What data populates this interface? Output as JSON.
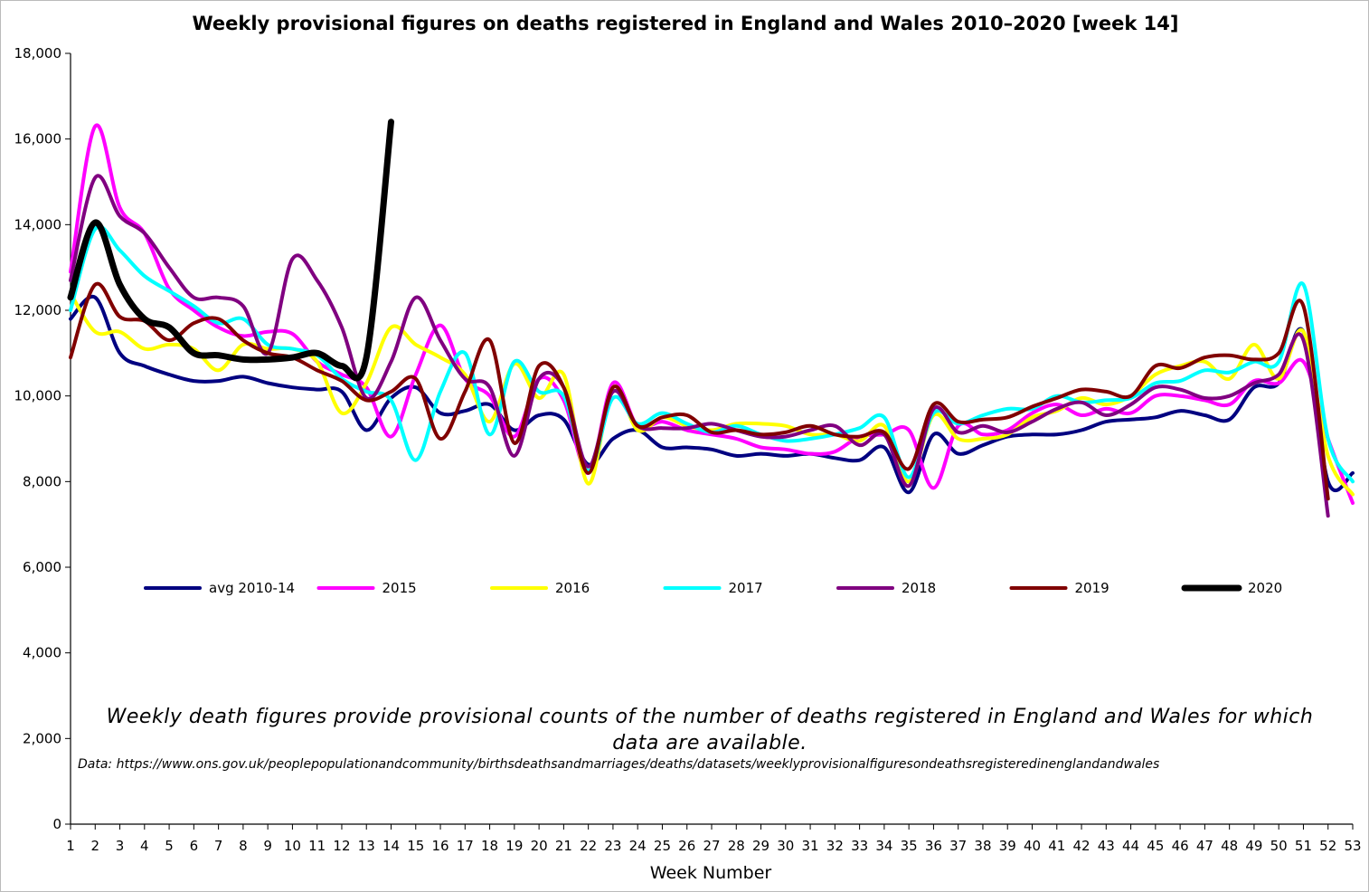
{
  "chart_data": {
    "type": "line",
    "title": "Weekly provisional figures on deaths registered in England and Wales 2010–2020 [week 14]",
    "xlabel": "Week Number",
    "ylabel": "",
    "xlim": [
      1,
      53
    ],
    "ylim": [
      0,
      18000
    ],
    "yticks": [
      0,
      2000,
      4000,
      6000,
      8000,
      10000,
      12000,
      14000,
      16000,
      18000
    ],
    "ytick_labels": [
      "0",
      "2,000",
      "4,000",
      "6,000",
      "8,000",
      "10,000",
      "12,000",
      "14,000",
      "16,000",
      "18,000"
    ],
    "xticks": [
      1,
      2,
      3,
      4,
      5,
      6,
      7,
      8,
      9,
      10,
      11,
      12,
      13,
      14,
      15,
      16,
      17,
      18,
      19,
      20,
      21,
      22,
      23,
      24,
      25,
      26,
      27,
      28,
      29,
      30,
      31,
      32,
      33,
      34,
      35,
      36,
      37,
      38,
      39,
      40,
      41,
      42,
      43,
      44,
      45,
      46,
      47,
      48,
      49,
      50,
      51,
      52,
      53
    ],
    "grid": false,
    "legend_placement": "center",
    "annotation": "Weekly death figures provide provisional counts of the number of deaths registered in England and Wales for which data are available.",
    "source_note": "Data: https://www.ons.gov.uk/peoplepopulationandcommunity/birthsdeathsandmarriages/deaths/datasets/weeklyprovisionalfiguresondeathsregisteredinenglandandwales",
    "series": [
      {
        "name": "avg 2010-14",
        "color": "#000080",
        "width": 4,
        "x": [
          1,
          2,
          3,
          4,
          5,
          6,
          7,
          8,
          9,
          10,
          11,
          12,
          13,
          14,
          15,
          16,
          17,
          18,
          19,
          20,
          21,
          22,
          23,
          24,
          25,
          26,
          27,
          28,
          29,
          30,
          31,
          32,
          33,
          34,
          35,
          36,
          37,
          38,
          39,
          40,
          41,
          42,
          43,
          44,
          45,
          46,
          47,
          48,
          49,
          50,
          51,
          52,
          53
        ],
        "values": [
          11800,
          12300,
          11000,
          10700,
          10500,
          10350,
          10350,
          10450,
          10300,
          10200,
          10150,
          10100,
          9200,
          9950,
          10200,
          9600,
          9650,
          9800,
          9200,
          9550,
          9450,
          8400,
          9000,
          9200,
          8800,
          8800,
          8750,
          8600,
          8650,
          8600,
          8650,
          8550,
          8500,
          8800,
          7750,
          9100,
          8650,
          8850,
          9050,
          9100,
          9100,
          9200,
          9400,
          9450,
          9500,
          9650,
          9550,
          9450,
          10200,
          10300,
          11500,
          8000,
          8200
        ]
      },
      {
        "name": "2015",
        "color": "#ff00ff",
        "width": 4,
        "x": [
          1,
          2,
          3,
          4,
          5,
          6,
          7,
          8,
          9,
          10,
          11,
          12,
          13,
          14,
          15,
          16,
          17,
          18,
          19,
          20,
          21,
          22,
          23,
          24,
          25,
          26,
          27,
          28,
          29,
          30,
          31,
          32,
          33,
          34,
          35,
          36,
          37,
          38,
          39,
          40,
          41,
          42,
          43,
          44,
          45,
          46,
          47,
          48,
          49,
          50,
          51,
          52,
          53
        ],
        "values": [
          12900,
          16300,
          14400,
          13800,
          12500,
          12000,
          11600,
          11400,
          11500,
          11450,
          10800,
          10500,
          10200,
          9050,
          10500,
          11650,
          10400,
          10000,
          9050,
          10400,
          9900,
          8200,
          10300,
          9300,
          9400,
          9200,
          9100,
          9000,
          8800,
          8750,
          8650,
          8700,
          9050,
          9100,
          9200,
          7850,
          9300,
          9100,
          9200,
          9600,
          9800,
          9550,
          9700,
          9600,
          10000,
          10000,
          9900,
          9800,
          10350,
          10300,
          10800,
          9000,
          7500
        ]
      },
      {
        "name": "2016",
        "color": "#ffff00",
        "width": 4,
        "x": [
          1,
          2,
          3,
          4,
          5,
          6,
          7,
          8,
          9,
          10,
          11,
          12,
          13,
          14,
          15,
          16,
          17,
          18,
          19,
          20,
          21,
          22,
          23,
          24,
          25,
          26,
          27,
          28,
          29,
          30,
          31,
          32,
          33,
          34,
          35,
          36,
          37,
          38,
          39,
          40,
          41,
          42,
          43,
          44,
          45,
          46,
          47,
          48,
          49,
          50,
          51,
          52,
          53
        ],
        "values": [
          12400,
          11500,
          11500,
          11100,
          11200,
          11100,
          10600,
          11200,
          11100,
          11100,
          10800,
          9600,
          10300,
          11600,
          11200,
          10900,
          10500,
          9400,
          10750,
          9950,
          10500,
          7950,
          10200,
          9200,
          9500,
          9300,
          9200,
          9350,
          9350,
          9300,
          9100,
          9100,
          8950,
          9300,
          8000,
          9550,
          9000,
          9000,
          9100,
          9500,
          9650,
          9950,
          9800,
          10000,
          10500,
          10700,
          10800,
          10400,
          11200,
          10400,
          11500,
          8600,
          7700
        ]
      },
      {
        "name": "2017",
        "color": "#00ffff",
        "width": 4,
        "x": [
          1,
          2,
          3,
          4,
          5,
          6,
          7,
          8,
          9,
          10,
          11,
          12,
          13,
          14,
          15,
          16,
          17,
          18,
          19,
          20,
          21,
          22,
          23,
          24,
          25,
          26,
          27,
          28,
          29,
          30,
          31,
          32,
          33,
          34,
          35,
          36,
          37,
          38,
          39,
          40,
          41,
          42,
          43,
          44,
          45,
          46,
          47,
          48,
          49,
          50,
          51,
          52,
          53
        ],
        "values": [
          12000,
          13900,
          13400,
          12800,
          12450,
          12100,
          11700,
          11800,
          11200,
          11100,
          10950,
          10400,
          10100,
          9900,
          8500,
          10100,
          11000,
          9100,
          10800,
          10100,
          10000,
          8250,
          9950,
          9350,
          9600,
          9350,
          9150,
          9300,
          9100,
          8950,
          9000,
          9100,
          9250,
          9500,
          8100,
          9600,
          9350,
          9550,
          9700,
          9700,
          10000,
          9850,
          9900,
          9950,
          10300,
          10350,
          10600,
          10550,
          10800,
          10800,
          12600,
          9000,
          8000
        ]
      },
      {
        "name": "2018",
        "color": "#800080",
        "width": 4,
        "x": [
          1,
          2,
          3,
          4,
          5,
          6,
          7,
          8,
          9,
          10,
          11,
          12,
          13,
          14,
          15,
          16,
          17,
          18,
          19,
          20,
          21,
          22,
          23,
          24,
          25,
          26,
          27,
          28,
          29,
          30,
          31,
          32,
          33,
          34,
          35,
          36,
          37,
          38,
          39,
          40,
          41,
          42,
          43,
          44,
          45,
          46,
          47,
          48,
          49,
          50,
          51,
          52
        ],
        "values": [
          12700,
          15100,
          14200,
          13800,
          13000,
          12300,
          12300,
          12100,
          11000,
          13200,
          12700,
          11600,
          9950,
          10800,
          12300,
          11300,
          10400,
          10200,
          8600,
          10400,
          10200,
          8350,
          10100,
          9300,
          9250,
          9250,
          9350,
          9200,
          9050,
          9050,
          9200,
          9300,
          8850,
          9100,
          7900,
          9700,
          9150,
          9300,
          9150,
          9400,
          9700,
          9850,
          9550,
          9800,
          10200,
          10150,
          9950,
          10000,
          10300,
          10500,
          11300,
          7200
        ]
      },
      {
        "name": "2019",
        "color": "#800000",
        "width": 4,
        "x": [
          1,
          2,
          3,
          4,
          5,
          6,
          7,
          8,
          9,
          10,
          11,
          12,
          13,
          14,
          15,
          16,
          17,
          18,
          19,
          20,
          21,
          22,
          23,
          24,
          25,
          26,
          27,
          28,
          29,
          30,
          31,
          32,
          33,
          34,
          35,
          36,
          37,
          38,
          39,
          40,
          41,
          42,
          43,
          44,
          45,
          46,
          47,
          48,
          49,
          50,
          51,
          52
        ],
        "values": [
          10900,
          12600,
          11850,
          11750,
          11300,
          11700,
          11800,
          11300,
          11000,
          10900,
          10600,
          10350,
          9900,
          10100,
          10400,
          9000,
          10100,
          11300,
          8900,
          10700,
          10200,
          8200,
          10200,
          9300,
          9500,
          9550,
          9150,
          9200,
          9100,
          9150,
          9300,
          9100,
          9050,
          9150,
          8300,
          9800,
          9400,
          9450,
          9500,
          9750,
          9950,
          10150,
          10100,
          10000,
          10700,
          10650,
          10900,
          10950,
          10850,
          11000,
          12100,
          7600
        ]
      },
      {
        "name": "2020",
        "color": "#000000",
        "width": 7,
        "x": [
          1,
          2,
          3,
          4,
          5,
          6,
          7,
          8,
          9,
          10,
          11,
          12,
          13,
          14
        ],
        "values": [
          12300,
          14050,
          12600,
          11800,
          11600,
          11000,
          10950,
          10850,
          10850,
          10900,
          11000,
          10700,
          10900,
          16400
        ]
      }
    ]
  }
}
